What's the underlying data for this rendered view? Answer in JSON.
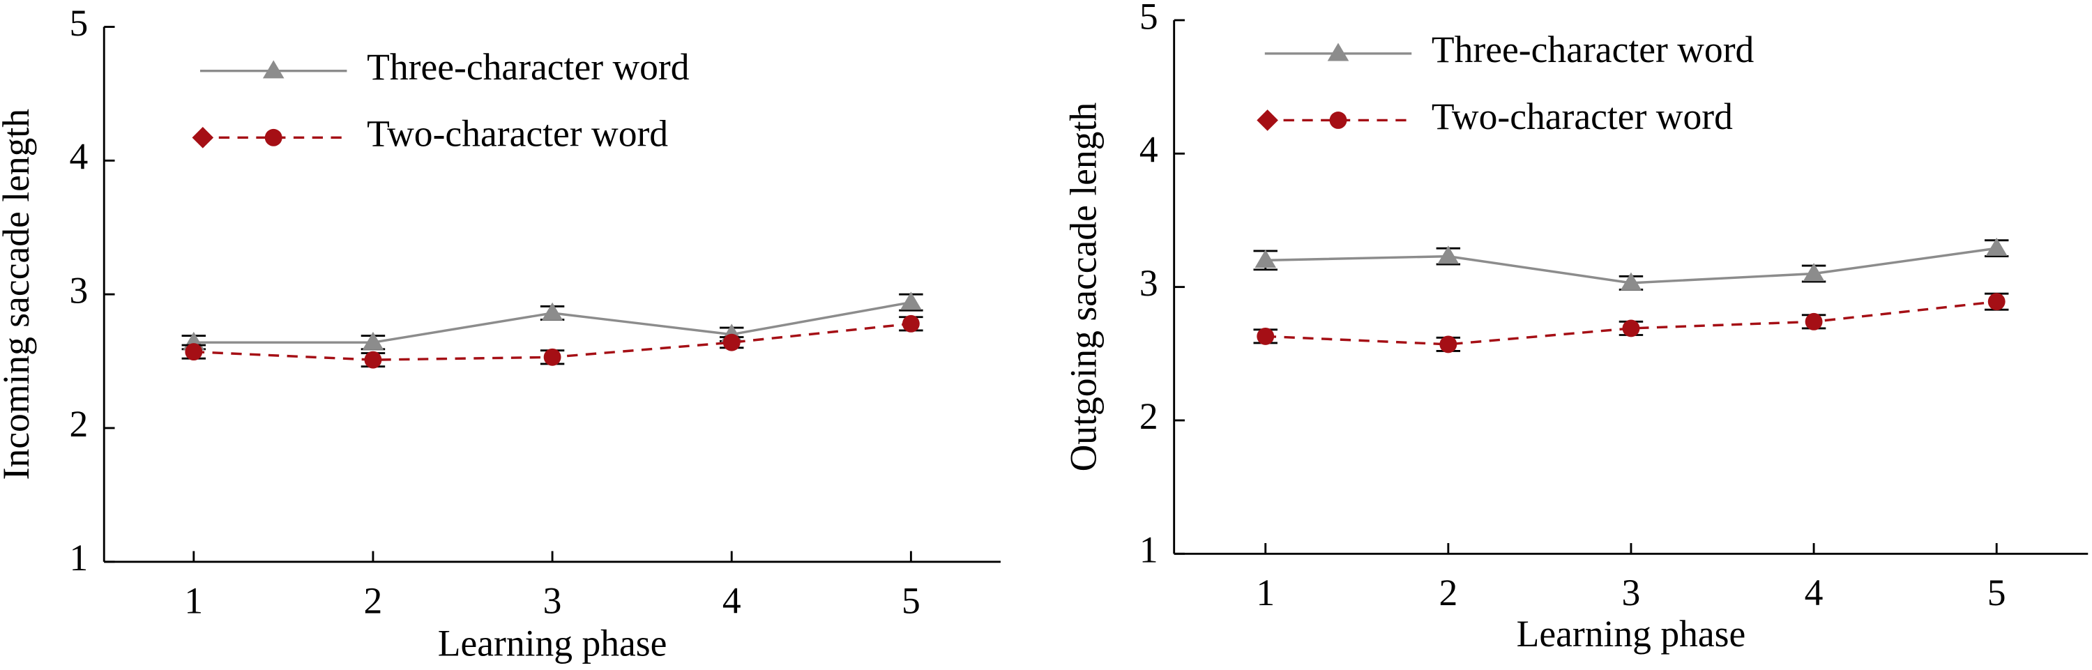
{
  "chart_data": [
    {
      "type": "line",
      "y_label": "Incoming saccade length",
      "x_label": "Learning phase",
      "x": [
        1,
        2,
        3,
        4,
        5
      ],
      "xlim": [
        0.5,
        5.5
      ],
      "xticks": [
        1,
        2,
        3,
        4,
        5
      ],
      "ylim": [
        1,
        5
      ],
      "yticks": [
        1,
        2,
        3,
        4,
        5
      ],
      "series": [
        {
          "name": "Three-character word",
          "color": "#8c8c8c",
          "marker": "triangle",
          "dash": false,
          "values": [
            2.64,
            2.64,
            2.86,
            2.7,
            2.94
          ],
          "errors": [
            0.05,
            0.05,
            0.05,
            0.05,
            0.06
          ]
        },
        {
          "name": "Two-character word",
          "color": "#a50f15",
          "marker": "circle",
          "dash": true,
          "values": [
            2.57,
            2.51,
            2.53,
            2.64,
            2.78
          ],
          "errors": [
            0.05,
            0.05,
            0.05,
            0.04,
            0.05
          ]
        }
      ]
    },
    {
      "type": "line",
      "y_label": "Outgoing saccade length",
      "x_label": "Learning phase",
      "x": [
        1,
        2,
        3,
        4,
        5
      ],
      "xlim": [
        0.5,
        5.5
      ],
      "xticks": [
        1,
        2,
        3,
        4,
        5
      ],
      "ylim": [
        1,
        5
      ],
      "yticks": [
        1,
        2,
        3,
        4,
        5
      ],
      "series": [
        {
          "name": "Three-character word",
          "color": "#8c8c8c",
          "marker": "triangle",
          "dash": false,
          "values": [
            3.2,
            3.23,
            3.03,
            3.1,
            3.29
          ],
          "errors": [
            0.07,
            0.06,
            0.05,
            0.06,
            0.06
          ]
        },
        {
          "name": "Two-character word",
          "color": "#a50f15",
          "marker": "circle",
          "dash": true,
          "values": [
            2.63,
            2.57,
            2.69,
            2.74,
            2.89
          ],
          "errors": [
            0.05,
            0.05,
            0.05,
            0.05,
            0.06
          ]
        }
      ]
    }
  ]
}
